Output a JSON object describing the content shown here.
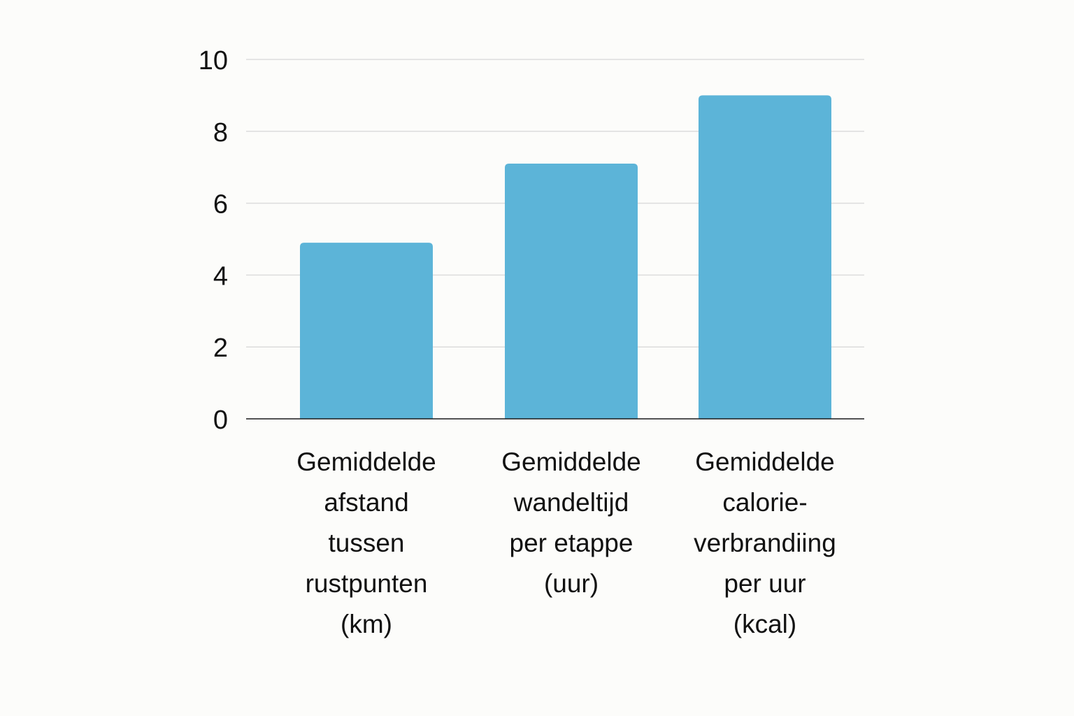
{
  "chart_data": {
    "type": "bar",
    "title": "",
    "xlabel": "",
    "ylabel": "",
    "categories": [
      [
        "Gemiddelde",
        "afstand",
        "tussen",
        "rustpunten",
        "(km)"
      ],
      [
        "Gemiddelde",
        "wandeltijd",
        "per etappe",
        "(uur)"
      ],
      [
        "Gemiddelde",
        "calorie-",
        "verbrandiing",
        "per uur",
        "(kcal)"
      ]
    ],
    "values": [
      4.9,
      7.1,
      9.0
    ],
    "ylim": [
      0,
      10
    ],
    "yticks": [
      "0",
      "2",
      "4",
      "6",
      "8",
      "10"
    ],
    "grid": true,
    "legend": "none",
    "colors": {
      "bar": "#5cb4d8",
      "grid": "#dcdcdc",
      "axis": "#1a1a1a",
      "background": "#fcfcfa"
    }
  }
}
